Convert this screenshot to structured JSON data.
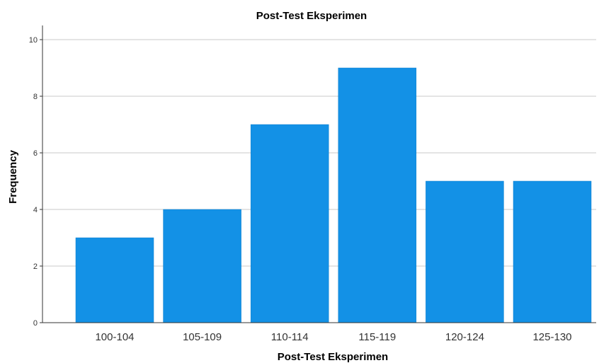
{
  "chart_data": {
    "type": "bar",
    "title": "Post-Test Eksperimen",
    "xlabel": "Post-Test Eksperimen",
    "ylabel": "Frequency",
    "categories": [
      "100-104",
      "105-109",
      "110-114",
      "115-119",
      "120-124",
      "125-130"
    ],
    "values": [
      3,
      4,
      7,
      9,
      5,
      5
    ],
    "ylim": [
      0,
      10.5
    ],
    "yticks": [
      "0",
      "2",
      "4",
      "6",
      "8",
      "10"
    ],
    "grid": true,
    "bar_color": "#1391e6"
  }
}
